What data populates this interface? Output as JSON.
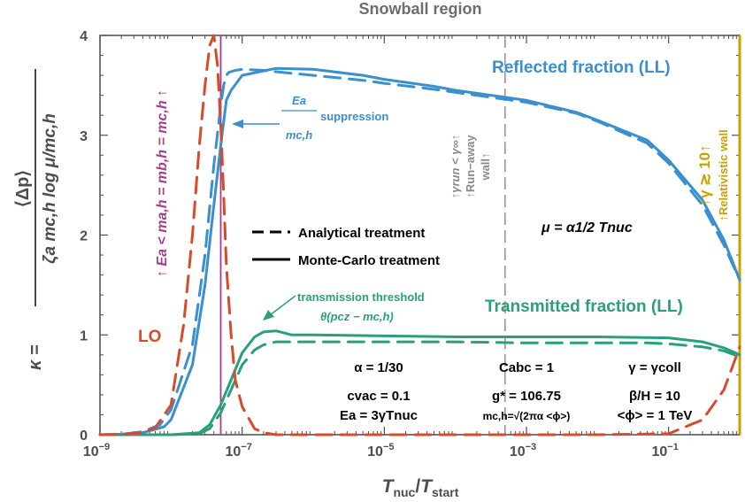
{
  "chart_data": {
    "type": "line",
    "title": "Snowball region",
    "x_scale": "log",
    "xlim": [
      1e-09,
      1
    ],
    "ylim": [
      0,
      4
    ],
    "xlabel": {
      "base": "T",
      "base_sub": "nuc",
      "mid": "/",
      "base2": "T",
      "base2_sub": "start"
    },
    "ylabel": {
      "lhs": "κ =",
      "numerator": "⟨Δp⟩",
      "denominator": "ζa mc,h log μ/mc,h"
    },
    "x_ticks": [
      {
        "value": 1e-09,
        "label": "10",
        "exp": "−9"
      },
      {
        "value": 1e-07,
        "label": "10",
        "exp": "−7"
      },
      {
        "value": 1e-05,
        "label": "10",
        "exp": "−5"
      },
      {
        "value": 0.001,
        "label": "10",
        "exp": "−3"
      },
      {
        "value": 0.1,
        "label": "10",
        "exp": "−1"
      }
    ],
    "y_ticks": [
      {
        "value": 0,
        "label": "0"
      },
      {
        "value": 1,
        "label": "1"
      },
      {
        "value": 2,
        "label": "2"
      },
      {
        "value": 3,
        "label": "3"
      },
      {
        "value": 4,
        "label": "4"
      }
    ],
    "series": [
      {
        "name": "Reflected fraction (LL)",
        "style": "dashed",
        "color": "#3a8fcf",
        "x": [
          1e-09,
          2e-09,
          4e-09,
          7e-09,
          1e-08,
          2e-08,
          3e-08,
          4e-08,
          5e-08,
          5.5e-08,
          6e-08,
          6.5e-08,
          8e-08,
          1e-07,
          2e-07,
          5e-07,
          1e-06,
          5e-06,
          1e-05,
          5e-05,
          0.0001,
          0.0005,
          0.001,
          0.005,
          0.01,
          0.05,
          0.1,
          0.3,
          0.6,
          1
        ],
        "y": [
          0,
          0.005,
          0.03,
          0.1,
          0.25,
          0.9,
          1.8,
          2.7,
          3.3,
          3.5,
          3.6,
          3.63,
          3.65,
          3.66,
          3.65,
          3.62,
          3.6,
          3.55,
          3.52,
          3.46,
          3.43,
          3.36,
          3.33,
          3.22,
          3.14,
          2.92,
          2.72,
          2.3,
          1.9,
          1.55
        ]
      },
      {
        "name": "Reflected fraction (LL)",
        "style": "solid",
        "color": "#3a8fcf",
        "x": [
          1e-09,
          2e-09,
          4e-09,
          8e-09,
          1e-08,
          2e-08,
          3e-08,
          4e-08,
          5e-08,
          6e-08,
          7e-08,
          1e-07,
          3e-07,
          1e-06,
          5e-06,
          1e-05,
          5e-05,
          0.0001,
          0.0005,
          0.001,
          0.005,
          0.01,
          0.05,
          0.1,
          0.3,
          0.6,
          1
        ],
        "y": [
          0,
          0.005,
          0.02,
          0.08,
          0.15,
          0.7,
          1.5,
          2.3,
          2.9,
          3.35,
          3.45,
          3.6,
          3.67,
          3.66,
          3.6,
          3.56,
          3.49,
          3.45,
          3.38,
          3.35,
          3.23,
          3.15,
          2.95,
          2.75,
          2.35,
          1.95,
          1.55
        ]
      },
      {
        "name": "Transmitted fraction (LL)",
        "style": "dashed",
        "color": "#2aa07a",
        "x": [
          1e-09,
          1e-08,
          2.5e-08,
          3.5e-08,
          5e-08,
          7e-08,
          1e-07,
          1.5e-07,
          2e-07,
          3e-07,
          5e-07,
          1e-06,
          1e-05,
          0.0001,
          0.001,
          0.01,
          0.05,
          0.1,
          0.3,
          0.6,
          1
        ],
        "y": [
          0,
          0,
          0.01,
          0.06,
          0.22,
          0.45,
          0.7,
          0.85,
          0.9,
          0.93,
          0.93,
          0.93,
          0.93,
          0.93,
          0.92,
          0.92,
          0.92,
          0.91,
          0.88,
          0.84,
          0.78
        ]
      },
      {
        "name": "Transmitted fraction (LL)",
        "style": "solid",
        "color": "#2aa07a",
        "x": [
          1e-09,
          1e-08,
          2.5e-08,
          3.5e-08,
          5e-08,
          7e-08,
          1e-07,
          1.5e-07,
          2e-07,
          3e-07,
          5e-07,
          1e-06,
          1e-05,
          0.0001,
          0.001,
          0.01,
          0.1,
          0.3,
          0.6,
          1
        ],
        "y": [
          0,
          0,
          0.02,
          0.1,
          0.3,
          0.55,
          0.82,
          0.98,
          1.03,
          1.04,
          1.0,
          1.0,
          0.99,
          0.98,
          0.98,
          0.98,
          0.97,
          0.93,
          0.87,
          0.8
        ]
      },
      {
        "name": "LO",
        "style": "dashed",
        "color": "#d94a2b",
        "x": [
          1e-09,
          2e-09,
          4e-09,
          6e-09,
          1e-08,
          1.5e-08,
          2e-08,
          2.5e-08,
          3e-08,
          3.5e-08,
          4e-08,
          4.5e-08,
          5e-08,
          5.5e-08,
          6e-08,
          7e-08,
          8e-08,
          1e-07,
          1.5e-07,
          2e-07,
          3e-07,
          1e-06,
          0.0001,
          0.01,
          0.1,
          0.3,
          0.6,
          1
        ],
        "y": [
          0,
          0.002,
          0.02,
          0.07,
          0.3,
          1.1,
          2.0,
          2.9,
          3.5,
          3.9,
          4.0,
          3.7,
          3.1,
          2.4,
          1.7,
          1.0,
          0.55,
          0.28,
          0.06,
          0.02,
          0,
          0,
          0,
          0,
          0.01,
          0.15,
          0.45,
          0.88
        ]
      }
    ],
    "vlines": [
      {
        "x": 5e-08,
        "color": "#a63d8a",
        "style": "solid"
      },
      {
        "x": 0.0005,
        "color": "#8a8a8a",
        "style": "dashed"
      },
      {
        "x": 1,
        "color": "#c8a000",
        "style": "solid"
      }
    ],
    "legend": {
      "placement": "center-left",
      "entries": [
        {
          "label": "Analytical treatment",
          "style": "dashed"
        },
        {
          "label": "Monte-Carlo treatment",
          "style": "solid"
        }
      ]
    },
    "annotations": {
      "reflected": "Reflected fraction (LL)",
      "transmitted": "Transmitted fraction (LL)",
      "lo": "LO",
      "suppression_num": "Ea",
      "suppression_den": "mc,h",
      "suppression_word": "suppression",
      "transmission_threshold": "transmission threshold",
      "threshold_formula": "θ(pcz − mc,h)",
      "mass_condition": "↑ Ea < ma,h = mb,h = mc,h ↑",
      "runaway_line1": "↑γrun < γ∞↑",
      "runaway_line2": "↑Run−away",
      "runaway_line3": "wall↑",
      "relativistic_line1": "↑γ ≳ 10↑",
      "relativistic_line2": "↑Relativistic wall",
      "mu": "μ = α1/2 Tnuc",
      "params": [
        [
          "α = 1/30",
          "Cabc = 1",
          "γ = γcoll"
        ],
        [
          "cvac = 0.1",
          "g* = 106.75",
          "β/H = 10"
        ],
        [
          "Ea = 3γTnuc",
          "mc,h=√(2πα <ϕ>)",
          "<ϕ> = 1 TeV"
        ]
      ]
    },
    "colors": {
      "reflected": "#3a8fcf",
      "transmitted": "#2aa07a",
      "lo": "#d94a2b",
      "mass_line": "#a63d8a",
      "runaway": "#8a8a8a",
      "relativistic": "#c8a000",
      "axis": "#4d4d4d"
    }
  }
}
